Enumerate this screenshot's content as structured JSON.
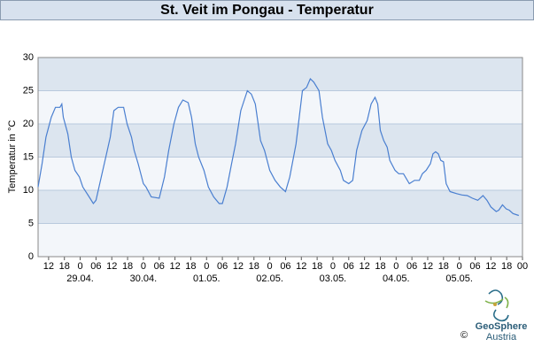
{
  "chart_data": {
    "type": "line",
    "title": "St. Veit im Pongau - Temperatur",
    "y_label": "Temperatur in °C",
    "x": [
      -16,
      -14.5,
      -13,
      -11,
      -9.4,
      -7.7,
      -7,
      -6.4,
      -4.7,
      -3.4,
      -2,
      -0.3,
      1,
      3.4,
      5,
      6,
      7.7,
      10,
      11.4,
      12.8,
      14.4,
      16.5,
      17.8,
      19.5,
      20.5,
      22,
      24,
      25,
      27,
      30,
      32,
      33.6,
      35.6,
      37.3,
      39,
      41,
      42.3,
      43.7,
      45,
      47,
      48.7,
      50.7,
      52.8,
      54,
      55.8,
      57.5,
      59,
      61,
      63.5,
      65,
      66.5,
      68.5,
      70,
      72,
      74,
      76,
      78,
      79.6,
      82,
      84.4,
      86,
      87.4,
      88.7,
      90.7,
      92,
      94,
      95.4,
      96.8,
      98.8,
      100,
      102,
      103.5,
      105,
      107,
      109,
      110.5,
      112,
      113,
      114,
      115.3,
      116.6,
      117.6,
      119.6,
      121,
      122.8,
      125,
      127,
      128.8,
      130,
      131.4,
      133,
      134,
      135,
      136,
      137,
      138,
      139,
      140.5,
      143,
      145,
      147,
      149,
      151,
      153,
      154.5,
      156,
      158,
      159,
      160.4,
      161.8,
      163,
      164.4,
      166.6
    ],
    "series": [
      {
        "name": "Temperatur",
        "color": "#4a7fd0",
        "values": [
          10.5,
          14,
          18,
          21,
          22.5,
          22.5,
          23,
          21,
          18.5,
          15,
          13,
          12,
          10.5,
          9,
          8,
          8.5,
          11.5,
          15.5,
          18,
          22,
          22.5,
          22.5,
          20,
          18,
          16,
          14,
          11,
          10.5,
          9,
          8.8,
          12,
          16,
          20,
          22.5,
          23.6,
          23.2,
          21,
          17,
          15,
          13,
          10.5,
          9,
          8,
          8,
          10.5,
          14,
          17,
          22,
          25,
          24.5,
          23,
          17.5,
          16,
          13,
          11.5,
          10.5,
          9.8,
          12,
          17,
          25,
          25.5,
          26.8,
          26.3,
          25,
          21,
          17,
          16,
          14.5,
          13,
          11.5,
          11,
          11.5,
          16,
          19,
          20.5,
          23,
          24,
          23,
          19,
          17.5,
          16.5,
          14.5,
          13,
          12.5,
          12.5,
          11,
          11.5,
          11.5,
          12.5,
          13,
          14,
          15.5,
          15.8,
          15.5,
          14.5,
          14.3,
          11,
          9.8,
          9.5,
          9.3,
          9.2,
          8.8,
          8.5,
          9.2,
          8.5,
          7.5,
          6.8,
          7,
          7.8,
          7.2,
          7,
          6.5,
          6.2
        ]
      }
    ],
    "xlim": [
      -16,
      168
    ],
    "xticks": [
      {
        "value": -12,
        "label": "12"
      },
      {
        "value": -6,
        "label": "18"
      },
      0,
      {
        "value": 6,
        "label": "06"
      },
      {
        "value": 12,
        "label": "12"
      },
      {
        "value": 18,
        "label": "18"
      },
      {
        "value": 24,
        "label": "0"
      },
      {
        "value": 30,
        "label": "06"
      },
      {
        "value": 36,
        "label": "12"
      },
      {
        "value": 42,
        "label": "18"
      },
      {
        "value": 48,
        "label": "0"
      },
      {
        "value": 54,
        "label": "06"
      },
      {
        "value": 60,
        "label": "12"
      },
      {
        "value": 66,
        "label": "18"
      },
      {
        "value": 72,
        "label": "0"
      },
      {
        "value": 78,
        "label": "06"
      },
      {
        "value": 84,
        "label": "12"
      },
      {
        "value": 90,
        "label": "18"
      },
      {
        "value": 96,
        "label": "0"
      },
      {
        "value": 102,
        "label": "06"
      },
      {
        "value": 108,
        "label": "12"
      },
      {
        "value": 114,
        "label": "18"
      },
      {
        "value": 120,
        "label": "0"
      },
      {
        "value": 126,
        "label": "06"
      },
      {
        "value": 132,
        "label": "12"
      },
      {
        "value": 138,
        "label": "18"
      },
      {
        "value": 144,
        "label": "0"
      },
      {
        "value": 150,
        "label": "06"
      },
      {
        "value": 156,
        "label": "12"
      },
      {
        "value": 162,
        "label": "18"
      },
      {
        "value": 168,
        "label": "00"
      }
    ],
    "day_labels": [
      {
        "value": 0,
        "label": "29.04."
      },
      {
        "value": 24,
        "label": "30.04."
      },
      {
        "value": 48,
        "label": "01.05."
      },
      {
        "value": 72,
        "label": "02.05."
      },
      {
        "value": 96,
        "label": "03.05."
      },
      {
        "value": 120,
        "label": "04.05."
      },
      {
        "value": 144,
        "label": "05.05."
      }
    ],
    "ylim": [
      0,
      30
    ],
    "yticks": [
      0,
      5,
      10,
      15,
      20,
      25,
      30
    ],
    "band_colors": [
      "#f3f6fa",
      "#dce5ef"
    ],
    "grid": true
  },
  "logo": {
    "name": "GeoSphere",
    "sub": "Austria",
    "copyright": "©"
  }
}
